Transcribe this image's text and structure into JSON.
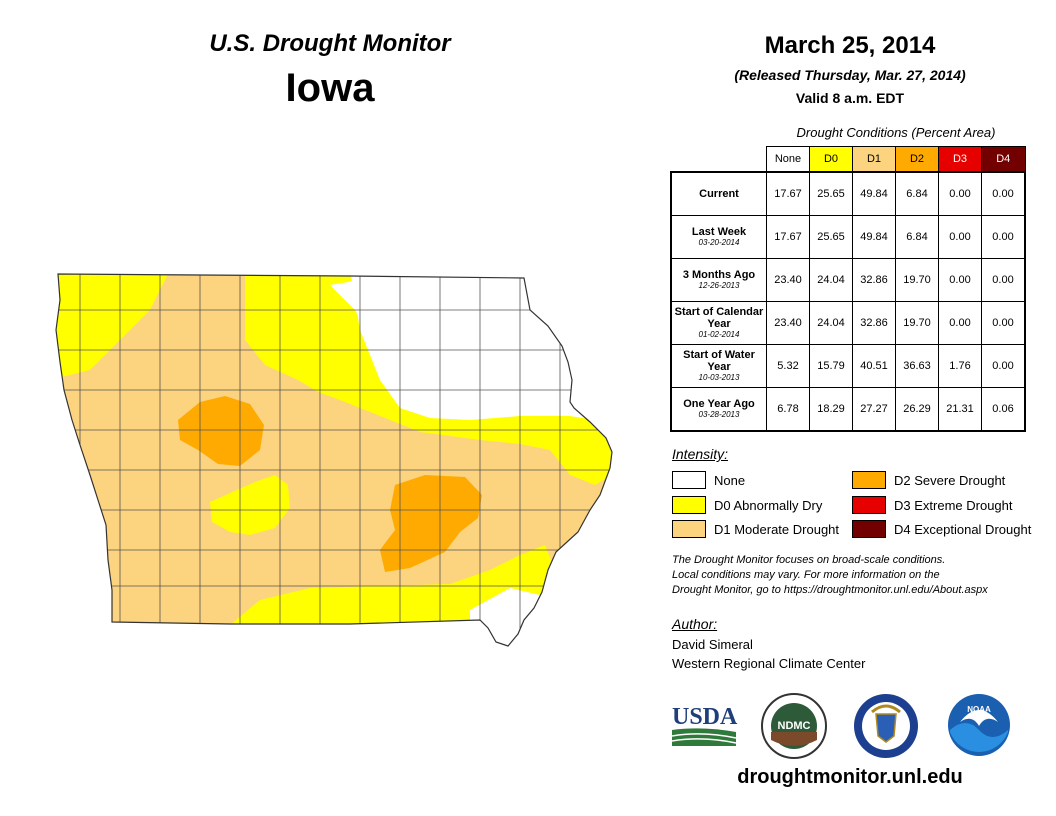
{
  "header": {
    "title": "U.S. Drought Monitor",
    "state": "Iowa",
    "date": "March 25, 2014",
    "released": "(Released Thursday, Mar. 27, 2014)",
    "valid": "Valid 8 a.m. EDT"
  },
  "table": {
    "caption": "Drought Conditions (Percent Area)",
    "columns": [
      {
        "label": "None",
        "color": "#ffffff",
        "text_color": "#000000"
      },
      {
        "label": "D0",
        "color": "#ffff00",
        "text_color": "#000000"
      },
      {
        "label": "D1",
        "color": "#fcd37f",
        "text_color": "#000000"
      },
      {
        "label": "D2",
        "color": "#ffaa00",
        "text_color": "#000000"
      },
      {
        "label": "D3",
        "color": "#e60000",
        "text_color": "#ffffff"
      },
      {
        "label": "D4",
        "color": "#730000",
        "text_color": "#ffffff"
      }
    ],
    "rows": [
      {
        "label": "Current",
        "sublabel": "",
        "values": [
          "17.67",
          "25.65",
          "49.84",
          "6.84",
          "0.00",
          "0.00"
        ]
      },
      {
        "label": "Last Week",
        "sublabel": "03-20-2014",
        "values": [
          "17.67",
          "25.65",
          "49.84",
          "6.84",
          "0.00",
          "0.00"
        ]
      },
      {
        "label": "3 Months Ago",
        "sublabel": "12-26-2013",
        "values": [
          "23.40",
          "24.04",
          "32.86",
          "19.70",
          "0.00",
          "0.00"
        ]
      },
      {
        "label": "Start of Calendar Year",
        "sublabel": "01-02-2014",
        "values": [
          "23.40",
          "24.04",
          "32.86",
          "19.70",
          "0.00",
          "0.00"
        ]
      },
      {
        "label": "Start of Water Year",
        "sublabel": "10-03-2013",
        "values": [
          "5.32",
          "15.79",
          "40.51",
          "36.63",
          "1.76",
          "0.00"
        ]
      },
      {
        "label": "One Year Ago",
        "sublabel": "03-28-2013",
        "values": [
          "6.78",
          "18.29",
          "27.27",
          "26.29",
          "21.31",
          "0.06"
        ]
      }
    ]
  },
  "legend": {
    "title": "Intensity:",
    "items": [
      {
        "label": "None",
        "color": "#ffffff"
      },
      {
        "label": "D0 Abnormally Dry",
        "color": "#ffff00"
      },
      {
        "label": "D1 Moderate Drought",
        "color": "#fcd37f"
      },
      {
        "label": "D2 Severe Drought",
        "color": "#ffaa00"
      },
      {
        "label": "D3 Extreme Drought",
        "color": "#e60000"
      },
      {
        "label": "D4 Exceptional Drought",
        "color": "#730000"
      }
    ]
  },
  "note": {
    "line1": "The Drought Monitor focuses on broad-scale conditions.",
    "line2": "Local conditions may vary. For more information on the",
    "line3": "Drought Monitor, go to https://droughtmonitor.unl.edu/About.aspx"
  },
  "author": {
    "title": "Author:",
    "name": "David Simeral",
    "org": "Western Regional Climate Center"
  },
  "logos": {
    "usda": "USDA",
    "ndmc": "NDMC",
    "noaa": "NOAA"
  },
  "footer": {
    "url": "droughtmonitor.unl.edu"
  }
}
